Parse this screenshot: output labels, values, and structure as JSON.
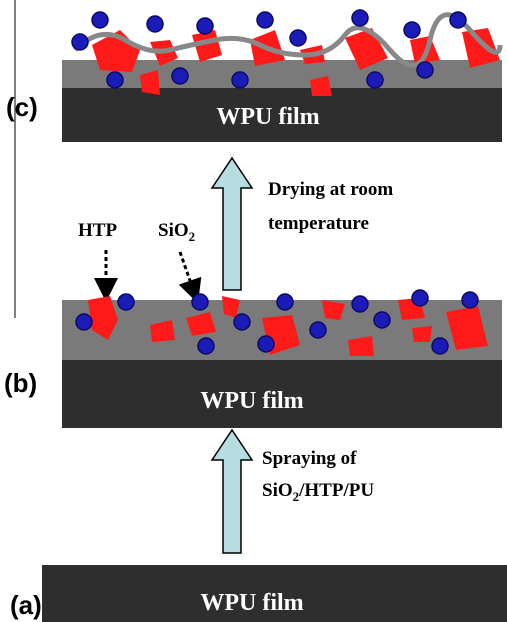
{
  "panels": {
    "c": {
      "label": "(c)",
      "film": "WPU film"
    },
    "b": {
      "label": "(b)",
      "film": "WPU film",
      "htp": "HTP",
      "sio2": [
        "SiO",
        "2"
      ]
    },
    "a": {
      "label": "(a)",
      "film": "WPU film"
    }
  },
  "steps": {
    "drying": [
      "Drying at room",
      "temperature"
    ],
    "spraying": {
      "line1": "Spraying of",
      "line2": [
        "SiO",
        "2",
        "/HTP/PU"
      ]
    }
  }
}
